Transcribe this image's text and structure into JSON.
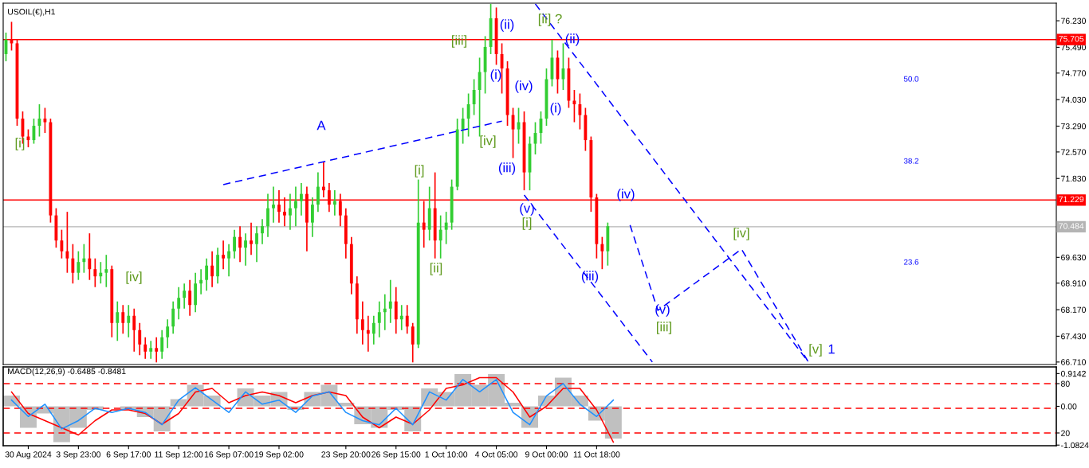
{
  "chart_data": [
    {
      "type": "candlestick",
      "title": "USOIL(€),H1",
      "categories": [
        null,
        null,
        null,
        null,
        null,
        null,
        null,
        null,
        null,
        null,
        null,
        null,
        null,
        null,
        null,
        null,
        null,
        null,
        null,
        null,
        null,
        null,
        null,
        null,
        null,
        null,
        null,
        null,
        null,
        null,
        null,
        null,
        null,
        null,
        null,
        null,
        null,
        null,
        null,
        null,
        null,
        null,
        null,
        null,
        null,
        null,
        null,
        null,
        null,
        null,
        null,
        null,
        null,
        null,
        null,
        null,
        null,
        null,
        null,
        null,
        null,
        null,
        null,
        null,
        null,
        null,
        null,
        null,
        null,
        null,
        null,
        null,
        null,
        null,
        null,
        null,
        null,
        null,
        null,
        null,
        null,
        null,
        null,
        null,
        null,
        null,
        null,
        null,
        null,
        null,
        null,
        null,
        null,
        null,
        null,
        null,
        null,
        null,
        null,
        null,
        null,
        null,
        null,
        null,
        null,
        null,
        null,
        null,
        null,
        null,
        null,
        null,
        null,
        null,
        null,
        null,
        null,
        null,
        null,
        null,
        null,
        null,
        null,
        null,
        null,
        null,
        null,
        null,
        null,
        null,
        null,
        null,
        null,
        null,
        null,
        null,
        null,
        null,
        null,
        null,
        null,
        null,
        null,
        null,
        null,
        null,
        null,
        null,
        null,
        null,
        null,
        null,
        null,
        null,
        null,
        null,
        null,
        null,
        null,
        null,
        null,
        null,
        null,
        null,
        null,
        null,
        null,
        null,
        null,
        null,
        null,
        null,
        null,
        null,
        null,
        null,
        null,
        null,
        null,
        null,
        null,
        null,
        null,
        null,
        null,
        null,
        null,
        null,
        null
      ],
      "ohlc": [
        [
          75.3,
          75.9,
          75.1,
          75.7
        ],
        [
          75.7,
          76.2,
          75.4,
          75.6
        ],
        [
          75.6,
          75.7,
          73.3,
          73.5
        ],
        [
          73.5,
          73.7,
          72.8,
          73.0
        ],
        [
          73.0,
          73.2,
          72.7,
          72.9
        ],
        [
          72.9,
          73.5,
          72.8,
          73.3
        ],
        [
          73.3,
          73.9,
          73.0,
          73.5
        ],
        [
          73.5,
          73.8,
          73.1,
          73.4
        ],
        [
          73.4,
          73.5,
          70.6,
          70.8
        ],
        [
          70.8,
          71.0,
          69.9,
          70.1
        ],
        [
          70.1,
          70.4,
          69.6,
          69.8
        ],
        [
          69.8,
          70.9,
          69.2,
          69.6
        ],
        [
          69.6,
          70.0,
          68.9,
          69.2
        ],
        [
          69.2,
          69.8,
          69.0,
          69.5
        ],
        [
          69.5,
          70.0,
          69.2,
          69.6
        ],
        [
          69.6,
          70.3,
          69.0,
          69.3
        ],
        [
          69.3,
          69.6,
          68.8,
          69.1
        ],
        [
          69.1,
          69.5,
          68.9,
          69.2
        ],
        [
          69.2,
          69.7,
          68.8,
          69.3
        ],
        [
          69.3,
          69.4,
          67.4,
          67.8
        ],
        [
          67.8,
          68.4,
          67.3,
          68.1
        ],
        [
          68.1,
          68.3,
          67.5,
          67.8
        ],
        [
          67.8,
          68.3,
          67.4,
          68.0
        ],
        [
          68.0,
          68.2,
          67.0,
          67.6
        ],
        [
          67.6,
          67.8,
          66.9,
          67.2
        ],
        [
          67.2,
          67.4,
          66.8,
          67.0
        ],
        [
          67.0,
          67.3,
          66.8,
          67.1
        ],
        [
          67.1,
          67.4,
          66.7,
          67.0
        ],
        [
          67.0,
          67.6,
          66.8,
          67.4
        ],
        [
          67.4,
          67.9,
          67.1,
          67.7
        ],
        [
          67.7,
          68.4,
          67.5,
          68.2
        ],
        [
          68.2,
          68.8,
          67.9,
          68.5
        ],
        [
          68.5,
          68.9,
          68.2,
          68.7
        ],
        [
          68.7,
          69.0,
          68.0,
          68.3
        ],
        [
          68.3,
          69.2,
          68.1,
          68.9
        ],
        [
          68.9,
          69.3,
          68.6,
          69.0
        ],
        [
          69.0,
          69.6,
          68.7,
          69.4
        ],
        [
          69.4,
          69.8,
          68.8,
          69.1
        ],
        [
          69.1,
          69.9,
          68.9,
          69.7
        ],
        [
          69.7,
          70.1,
          69.3,
          69.6
        ],
        [
          69.6,
          70.0,
          69.1,
          69.8
        ],
        [
          69.8,
          70.4,
          69.6,
          70.2
        ],
        [
          70.2,
          70.5,
          69.5,
          69.9
        ],
        [
          69.9,
          70.3,
          69.4,
          70.1
        ],
        [
          70.1,
          70.6,
          69.7,
          70.0
        ],
        [
          70.0,
          70.5,
          69.5,
          70.3
        ],
        [
          70.3,
          70.7,
          70.0,
          70.5
        ],
        [
          70.5,
          71.4,
          70.2,
          71.0
        ],
        [
          71.0,
          71.6,
          70.6,
          71.1
        ],
        [
          71.1,
          71.5,
          70.6,
          70.9
        ],
        [
          70.9,
          71.3,
          70.5,
          70.8
        ],
        [
          70.8,
          71.4,
          70.4,
          71.0
        ],
        [
          71.0,
          71.6,
          70.5,
          71.2
        ],
        [
          71.2,
          71.7,
          70.8,
          71.4
        ],
        [
          71.4,
          71.6,
          69.8,
          70.6
        ],
        [
          70.6,
          71.3,
          70.2,
          71.1
        ],
        [
          71.1,
          72.0,
          70.9,
          71.6
        ],
        [
          71.6,
          72.3,
          71.3,
          71.5
        ],
        [
          71.5,
          71.7,
          70.9,
          71.1
        ],
        [
          71.1,
          71.5,
          70.8,
          71.2
        ],
        [
          71.2,
          71.4,
          70.5,
          70.8
        ],
        [
          70.8,
          71.0,
          69.6,
          70.0
        ],
        [
          70.0,
          70.2,
          68.6,
          68.9
        ],
        [
          68.9,
          69.1,
          67.5,
          67.9
        ],
        [
          67.9,
          68.4,
          67.2,
          67.6
        ],
        [
          67.6,
          68.0,
          67.0,
          67.5
        ],
        [
          67.5,
          68.0,
          67.2,
          67.8
        ],
        [
          67.8,
          68.4,
          67.4,
          68.1
        ],
        [
          68.1,
          68.6,
          67.6,
          68.2
        ],
        [
          68.2,
          69.0,
          67.8,
          68.4
        ],
        [
          68.4,
          68.8,
          67.5,
          67.9
        ],
        [
          67.9,
          68.3,
          67.6,
          68.0
        ],
        [
          68.0,
          68.3,
          67.5,
          67.7
        ],
        [
          67.7,
          67.8,
          66.7,
          67.2
        ],
        [
          67.2,
          71.8,
          67.1,
          70.6
        ],
        [
          70.6,
          71.2,
          69.9,
          70.4
        ],
        [
          70.4,
          71.6,
          70.1,
          71.0
        ],
        [
          71.0,
          72.0,
          69.6,
          70.1
        ],
        [
          70.1,
          70.8,
          69.6,
          70.4
        ],
        [
          70.4,
          70.9,
          70.0,
          70.6
        ],
        [
          70.6,
          71.8,
          70.4,
          71.6
        ],
        [
          71.6,
          73.5,
          71.5,
          73.2
        ],
        [
          73.2,
          73.8,
          72.8,
          73.5
        ],
        [
          73.5,
          74.2,
          73.0,
          73.9
        ],
        [
          73.9,
          74.6,
          73.6,
          74.3
        ],
        [
          74.3,
          75.2,
          73.0,
          74.8
        ],
        [
          74.8,
          75.8,
          74.2,
          75.5
        ],
        [
          75.5,
          76.7,
          75.3,
          76.3
        ],
        [
          76.3,
          76.6,
          75.0,
          75.3
        ],
        [
          75.3,
          75.6,
          74.2,
          74.9
        ],
        [
          74.9,
          75.1,
          73.3,
          73.6
        ],
        [
          73.6,
          73.8,
          72.4,
          73.2
        ],
        [
          73.2,
          73.8,
          72.8,
          73.4
        ],
        [
          73.4,
          73.7,
          71.5,
          72.0
        ],
        [
          72.0,
          73.0,
          71.5,
          72.8
        ],
        [
          72.8,
          73.4,
          72.5,
          73.1
        ],
        [
          73.1,
          73.7,
          72.8,
          73.5
        ],
        [
          73.5,
          74.9,
          73.3,
          74.6
        ],
        [
          74.6,
          75.7,
          74.4,
          75.2
        ],
        [
          75.2,
          75.4,
          74.2,
          74.6
        ],
        [
          74.6,
          75.6,
          74.3,
          74.9
        ],
        [
          74.9,
          75.2,
          73.8,
          74.0
        ],
        [
          74.0,
          74.3,
          73.4,
          73.9
        ],
        [
          73.9,
          74.2,
          73.2,
          73.6
        ],
        [
          73.6,
          73.8,
          72.6,
          72.9
        ],
        [
          72.9,
          73.0,
          70.9,
          71.3
        ],
        [
          71.3,
          71.4,
          69.6,
          70.0
        ],
        [
          70.0,
          70.2,
          69.3,
          69.8
        ],
        [
          69.8,
          70.6,
          69.4,
          70.5
        ],
        null,
        null,
        null,
        null,
        null,
        null,
        null,
        null,
        null,
        null,
        null,
        null,
        null,
        null,
        null,
        null,
        null,
        null,
        null,
        null,
        null,
        null,
        null,
        null,
        null,
        null,
        null,
        null,
        null,
        null,
        null,
        null,
        null,
        null,
        null,
        null,
        null,
        null,
        null,
        null,
        null,
        null,
        null,
        null,
        null,
        null,
        null,
        null,
        null,
        null,
        null,
        null,
        null,
        null,
        null,
        null,
        null,
        null,
        null,
        null,
        null,
        null,
        null,
        null,
        null,
        null,
        null,
        null,
        null,
        null,
        null,
        null,
        null,
        null,
        null,
        null,
        null,
        null,
        null,
        null
      ],
      "colors": [
        "#32cd32",
        "#ff0000",
        "#ff0000",
        "#ff0000",
        "#ff0000",
        "#32cd32",
        "#32cd32",
        "#ff0000",
        "#ff0000",
        "#ff0000",
        "#ff0000",
        "#ff0000",
        "#ff0000",
        "#32cd32",
        "#32cd32",
        "#ff0000",
        "#ff0000",
        "#32cd32",
        "#32cd32",
        "#ff0000",
        "#32cd32",
        "#ff0000",
        "#32cd32",
        "#ff0000",
        "#ff0000",
        "#ff0000",
        "#32cd32",
        "#ff0000",
        "#32cd32",
        "#32cd32",
        "#32cd32",
        "#32cd32",
        "#32cd32",
        "#ff0000",
        "#32cd32",
        "#32cd32",
        "#32cd32",
        "#ff0000",
        "#32cd32",
        "#ff0000",
        "#32cd32",
        "#32cd32",
        "#ff0000",
        "#32cd32",
        "#ff0000",
        "#32cd32",
        "#32cd32",
        "#32cd32",
        "#32cd32",
        "#ff0000",
        "#ff0000",
        "#32cd32",
        "#32cd32",
        "#32cd32",
        "#ff0000",
        "#32cd32",
        "#32cd32",
        "#ff0000",
        "#ff0000",
        "#32cd32",
        "#ff0000",
        "#ff0000",
        "#ff0000",
        "#ff0000",
        "#ff0000",
        "#ff0000",
        "#32cd32",
        "#32cd32",
        "#32cd32",
        "#32cd32",
        "#ff0000",
        "#32cd32",
        "#ff0000",
        "#ff0000",
        "#32cd32",
        "#ff0000",
        "#32cd32",
        "#ff0000",
        "#32cd32",
        "#32cd32",
        "#32cd32",
        "#32cd32",
        "#32cd32",
        "#32cd32",
        "#32cd32",
        "#32cd32",
        "#32cd32",
        "#32cd32",
        "#ff0000",
        "#ff0000",
        "#ff0000",
        "#ff0000",
        "#32cd32",
        "#ff0000",
        "#32cd32",
        "#32cd32",
        "#32cd32",
        "#32cd32",
        "#32cd32",
        "#ff0000",
        "#32cd32",
        "#ff0000",
        "#ff0000",
        "#ff0000",
        "#ff0000",
        "#ff0000",
        "#ff0000",
        "#ff0000",
        "#32cd32",
        null,
        null,
        null,
        null,
        null,
        null,
        null,
        null,
        null,
        null,
        null,
        null,
        null,
        null,
        null,
        null,
        null,
        null,
        null,
        null,
        null,
        null,
        null,
        null,
        null,
        null,
        null,
        null,
        null,
        null,
        null,
        null,
        null,
        null,
        null,
        null,
        null,
        null,
        null,
        null,
        null,
        null,
        null,
        null,
        null,
        null,
        null,
        null,
        null,
        null,
        null,
        null,
        null,
        null,
        null,
        null,
        null,
        null,
        null,
        null,
        null,
        null,
        null,
        null,
        null,
        null,
        null,
        null,
        null,
        null,
        null,
        null,
        null,
        null,
        null,
        null,
        null,
        null,
        null,
        null
      ],
      "series": [
        {
          "type": "line",
          "color": "#0000ff",
          "line_style": "dashed",
          "values": [
            null,
            null,
            null,
            null,
            null,
            null,
            null,
            null,
            null,
            null,
            null,
            null,
            null,
            null,
            null,
            null,
            null,
            null,
            null,
            null,
            null,
            null,
            null,
            null,
            null,
            null,
            null,
            null,
            null,
            null,
            null,
            null,
            null,
            null,
            null,
            null,
            null,
            null,
            null,
            71.66,
            null,
            null,
            null,
            null,
            null,
            null,
            null,
            null,
            null,
            null,
            null,
            null,
            null,
            null,
            null,
            null,
            null,
            null,
            null,
            null,
            null,
            null,
            null,
            null,
            null,
            null,
            null,
            null,
            null,
            null,
            null,
            null,
            null,
            null,
            null,
            null,
            null,
            null,
            null,
            null,
            null,
            null,
            null,
            null,
            null,
            null,
            null,
            null,
            null,
            73.43,
            null,
            null,
            null,
            null,
            null,
            null,
            null,
            null,
            null,
            null,
            null,
            null,
            null,
            null,
            null,
            null,
            null,
            null,
            null,
            null,
            null,
            null,
            null,
            null,
            null,
            null,
            null,
            null,
            null,
            null,
            null,
            null,
            null,
            null,
            null,
            null,
            null,
            null,
            null,
            null,
            null,
            null,
            null,
            null,
            null,
            null,
            null,
            null,
            null,
            null,
            null,
            null,
            null,
            null,
            null,
            null,
            null,
            null,
            null,
            null,
            null,
            null,
            null,
            null,
            null,
            null,
            null,
            null,
            null,
            null,
            null,
            null,
            null,
            null,
            null,
            null,
            null,
            null,
            null,
            null,
            null,
            null,
            null,
            null,
            null,
            null,
            null,
            null,
            null,
            null,
            null,
            null,
            null,
            null,
            null,
            null,
            null,
            null,
            null
          ]
        },
        {
          "type": "line",
          "color": "#0000ff",
          "line_style": "dashed",
          "values": [
            null,
            null,
            null,
            null,
            null,
            null,
            null,
            null,
            null,
            null,
            null,
            null,
            null,
            null,
            null,
            null,
            null,
            null,
            null,
            null,
            null,
            null,
            null,
            null,
            null,
            null,
            null,
            null,
            null,
            null,
            null,
            null,
            null,
            null,
            null,
            null,
            null,
            null,
            null,
            null,
            null,
            null,
            null,
            null,
            null,
            null,
            null,
            null,
            null,
            null,
            null,
            null,
            null,
            null,
            null,
            null,
            null,
            null,
            null,
            null,
            null,
            null,
            null,
            null,
            null,
            null,
            null,
            null,
            null,
            null,
            null,
            null,
            null,
            null,
            null,
            null,
            null,
            null,
            null,
            null,
            null,
            null,
            null,
            null,
            null,
            null,
            null,
            null,
            null,
            null,
            null,
            null,
            null,
            null,
            null,
            76.7,
            null,
            null,
            null,
            null,
            null,
            null,
            null,
            null,
            null,
            null,
            null,
            null,
            null,
            null,
            null,
            null,
            null,
            null,
            null,
            null,
            null,
            null,
            null,
            null,
            null,
            null,
            null,
            null,
            null,
            null,
            null,
            null,
            null,
            null,
            null,
            null,
            null,
            null,
            null,
            null,
            null,
            null,
            null,
            null,
            null,
            null,
            null,
            null,
            66.71,
            null,
            null,
            null,
            null,
            null,
            null,
            null,
            null,
            null,
            null,
            null,
            null,
            null,
            null,
            null,
            null,
            null,
            null,
            null,
            null,
            null,
            null,
            null,
            null,
            null,
            null,
            null,
            null,
            null,
            null,
            null,
            null,
            null,
            null,
            null,
            null,
            null,
            null,
            null,
            null,
            null,
            null,
            null,
            null
          ]
        },
        {
          "type": "line",
          "color": "#0000ff",
          "line_style": "dashed",
          "values": [
            null,
            null,
            null,
            null,
            null,
            null,
            null,
            null,
            null,
            null,
            null,
            null,
            null,
            null,
            null,
            null,
            null,
            null,
            null,
            null,
            null,
            null,
            null,
            null,
            null,
            null,
            null,
            null,
            null,
            null,
            null,
            null,
            null,
            null,
            null,
            null,
            null,
            null,
            null,
            null,
            null,
            null,
            null,
            null,
            null,
            null,
            null,
            null,
            null,
            null,
            null,
            null,
            null,
            null,
            null,
            null,
            null,
            null,
            null,
            null,
            null,
            null,
            null,
            null,
            null,
            null,
            null,
            null,
            null,
            null,
            null,
            null,
            null,
            null,
            null,
            null,
            null,
            null,
            null,
            null,
            null,
            null,
            null,
            null,
            null,
            null,
            null,
            null,
            null,
            null,
            null,
            null,
            null,
            71.37,
            null,
            null,
            null,
            null,
            null,
            null,
            null,
            null,
            null,
            null,
            null,
            null,
            null,
            null,
            null,
            null,
            null,
            null,
            null,
            null,
            null,
            null,
            66.71,
            null,
            null,
            null,
            null,
            null,
            null,
            null,
            null,
            null,
            null,
            null,
            null,
            null,
            null,
            null,
            null,
            null,
            null,
            null,
            null,
            null,
            null,
            null,
            null,
            null,
            null,
            null,
            null,
            null,
            null,
            null,
            null,
            null,
            null,
            null,
            null,
            null,
            null,
            null,
            null,
            null,
            null,
            null,
            null,
            null,
            null,
            null,
            null,
            null,
            null,
            null,
            null,
            null,
            null,
            null,
            null,
            null,
            null,
            null,
            null,
            null,
            null,
            null,
            null,
            null,
            null,
            null,
            null,
            null,
            null,
            null,
            null
          ]
        },
        {
          "type": "line",
          "color": "#0000ff",
          "line_style": "dashed",
          "values": [
            null,
            null,
            null,
            null,
            null,
            null,
            null,
            null,
            null,
            null,
            null,
            null,
            null,
            null,
            null,
            null,
            null,
            null,
            null,
            null,
            null,
            null,
            null,
            null,
            null,
            null,
            null,
            null,
            null,
            null,
            null,
            null,
            null,
            null,
            null,
            null,
            null,
            null,
            null,
            null,
            null,
            null,
            null,
            null,
            null,
            null,
            null,
            null,
            null,
            null,
            null,
            null,
            null,
            null,
            null,
            null,
            null,
            null,
            null,
            null,
            null,
            null,
            null,
            null,
            null,
            null,
            null,
            null,
            null,
            null,
            null,
            null,
            null,
            null,
            null,
            null,
            null,
            null,
            null,
            null,
            null,
            null,
            null,
            null,
            null,
            null,
            null,
            null,
            null,
            null,
            null,
            null,
            null,
            null,
            null,
            null,
            null,
            null,
            null,
            null,
            null,
            null,
            null,
            null,
            null,
            null,
            null,
            null,
            null,
            null,
            null,
            null,
            70.53,
            null,
            null,
            null,
            null,
            68.15,
            null,
            null,
            null,
            null,
            null,
            null,
            null,
            null,
            null,
            null,
            null,
            null,
            null,
            null,
            69.86,
            null,
            null,
            null,
            null,
            null,
            null,
            null,
            null,
            null,
            null,
            null,
            66.71,
            null,
            null,
            null,
            null,
            null,
            null,
            null,
            null,
            null,
            null,
            null,
            null,
            null,
            null,
            null,
            null,
            null,
            null,
            null,
            null,
            null,
            null,
            null,
            null,
            null,
            null,
            null,
            null,
            null,
            null,
            null,
            null,
            null,
            null,
            null,
            null,
            null,
            null,
            null,
            null,
            null,
            null,
            null,
            null
          ]
        }
      ],
      "ref_lines": [
        {
          "axis": "y",
          "value": 75.705,
          "label": "75.705",
          "color": "#ff0000",
          "line_style": "solid"
        },
        {
          "axis": "y",
          "value": 71.229,
          "label": "71.229",
          "color": "#ff0000",
          "line_style": "solid"
        },
        {
          "axis": "y",
          "value": 70.484,
          "label": "70.484",
          "color": "#b4b4b4",
          "line_style": "solid"
        }
      ],
      "annotations": [
        "[i]",
        "[iv]",
        "A",
        "[i]",
        "[ii]",
        "[iii]",
        "[iv]",
        "(ii)",
        "(i)",
        "(iv)",
        "(iii)",
        "(v)",
        "[i]",
        "[ii] ?",
        "(ii)",
        "(i)",
        "(iii)",
        "(iv)",
        "(v)",
        "[iii]",
        "[iv]",
        "[v]",
        "1",
        "50.0",
        "38.2",
        "23.6"
      ],
      "ylim": [
        66.64,
        76.72
      ],
      "yticks": [
        {
          "value": 76.23,
          "label": "76.230"
        },
        {
          "value": 75.49,
          "label": "75.490"
        },
        {
          "value": 74.77,
          "label": "74.770"
        },
        {
          "value": 74.03,
          "label": "74.030"
        },
        {
          "value": 73.29,
          "label": "73.290"
        },
        {
          "value": 72.57,
          "label": "72.570"
        },
        {
          "value": 71.83,
          "label": "71.830"
        },
        {
          "value": 69.63,
          "label": "69.630"
        },
        {
          "value": 68.91,
          "label": "68.910"
        },
        {
          "value": 68.17,
          "label": "68.170"
        },
        {
          "value": 67.43,
          "label": "67.430"
        },
        {
          "value": 66.71,
          "label": "66.710"
        }
      ],
      "tick_labels": "y",
      "grid": false
    },
    {
      "type": "bar",
      "title": "MACD(12,26,9) -0.6485 -0.8481",
      "categories": [
        null,
        "30 Aug 2024",
        null,
        null,
        "3 Sep 23:00",
        null,
        null,
        "6 Sep 17:00",
        null,
        null,
        "11 Sep 12:00",
        null,
        null,
        "16 Sep 07:00",
        null,
        null,
        "19 Sep 02:00",
        null,
        null,
        null,
        "23 Sep 20:00",
        null,
        null,
        "26 Sep 15:00",
        null,
        null,
        "1 Oct 10:00",
        null,
        null,
        "4 Oct 05:00",
        null,
        null,
        "9 Oct 00:00",
        null,
        null,
        "11 Oct 18:00",
        null,
        null,
        null,
        null,
        null,
        null,
        null,
        null,
        null,
        null,
        null,
        null,
        null,
        null,
        null,
        null,
        null,
        null,
        null,
        null,
        null,
        null,
        null,
        null,
        null,
        null,
        null
      ],
      "series": [
        {
          "type": "bar",
          "color": "#c0c0c0",
          "values": [
            0.3,
            -0.6,
            -0.2,
            -1.0,
            -0.6,
            -0.1,
            0.0,
            -0.1,
            -0.3,
            -0.7,
            0.2,
            0.6,
            0.3,
            0.0,
            0.5,
            0.3,
            0.4,
            -0.1,
            0.4,
            0.6,
            0.1,
            -0.5,
            -0.6,
            -0.1,
            -0.7,
            0.5,
            0.4,
            0.9,
            0.6,
            0.9,
            0.1,
            -0.6,
            0.3,
            0.8,
            0.3,
            -0.4,
            -0.9,
            null,
            null,
            null,
            null,
            null,
            null,
            null,
            null,
            null,
            null,
            null,
            null,
            null,
            null,
            null,
            null,
            null,
            null,
            null,
            null,
            null,
            null,
            null,
            null,
            null,
            null
          ]
        },
        {
          "type": "line",
          "color": "#ff0000",
          "values": [
            0.4,
            -0.2,
            -0.4,
            -0.6,
            -0.8,
            -0.4,
            -0.1,
            -0.1,
            -0.2,
            -0.5,
            -0.2,
            0.4,
            0.5,
            0.1,
            0.3,
            0.4,
            0.3,
            0.1,
            0.3,
            0.4,
            0.3,
            -0.3,
            -0.6,
            -0.3,
            -0.5,
            -0.1,
            0.5,
            0.6,
            0.8,
            0.8,
            0.4,
            -0.3,
            0.0,
            0.5,
            0.5,
            -0.1,
            -1.0,
            null,
            null,
            null,
            null,
            null,
            null,
            null,
            null,
            null,
            null,
            null,
            null,
            null,
            null,
            null,
            null,
            null,
            null,
            null,
            null,
            null,
            null,
            null,
            null,
            null,
            null
          ]
        },
        {
          "type": "line",
          "color": "#1e90ff",
          "axis": "y2",
          "values": [
            60,
            40,
            55,
            25,
            35,
            50,
            45,
            50,
            45,
            30,
            60,
            75,
            60,
            45,
            70,
            55,
            60,
            45,
            65,
            70,
            45,
            35,
            30,
            50,
            30,
            70,
            60,
            85,
            70,
            85,
            45,
            30,
            65,
            80,
            55,
            40,
            60,
            null,
            null,
            null,
            null,
            null,
            null,
            null,
            null,
            null,
            null,
            null,
            null,
            null,
            null,
            null,
            null,
            null,
            null,
            null,
            null,
            null,
            null,
            null,
            null,
            null,
            null
          ]
        }
      ],
      "ref_lines": [
        {
          "axis": "y2",
          "value": 80,
          "label": null,
          "color": "#ff0000",
          "line_style": "dashed"
        },
        {
          "axis": "y2",
          "value": 50,
          "label": null,
          "color": "#ff0000",
          "line_style": "dashed"
        },
        {
          "axis": "y2",
          "value": 20,
          "label": null,
          "color": "#ff0000",
          "line_style": "dashed"
        }
      ],
      "ylim": [
        -1.1,
        1.1
      ],
      "yticks": [
        0.9142,
        {
          "value": 0,
          "label": "0.00"
        },
        -1.0824
      ],
      "y2lim": [
        4.5,
        100.3
      ],
      "y2ticks": [
        80,
        20
      ],
      "grid": false
    }
  ]
}
